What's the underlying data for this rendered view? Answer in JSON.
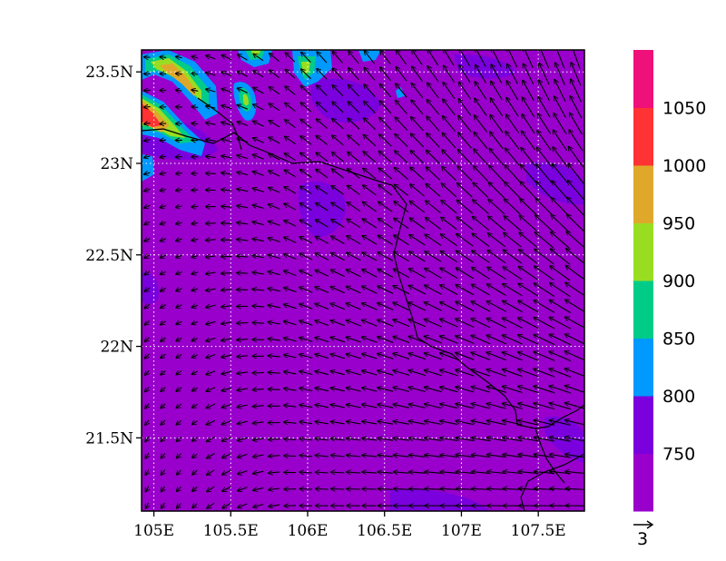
{
  "map": {
    "lat_ticks": [
      {
        "value": 23.5,
        "label": "23.5N"
      },
      {
        "value": 23.0,
        "label": "23N"
      },
      {
        "value": 22.5,
        "label": "22.5N"
      },
      {
        "value": 22.0,
        "label": "22N"
      },
      {
        "value": 21.5,
        "label": "21.5N"
      }
    ],
    "lon_ticks": [
      {
        "value": 105.0,
        "label": "105E"
      },
      {
        "value": 105.5,
        "label": "105.5E"
      },
      {
        "value": 106.0,
        "label": "106E"
      },
      {
        "value": 106.5,
        "label": "106.5E"
      },
      {
        "value": 107.0,
        "label": "107E"
      },
      {
        "value": 107.5,
        "label": "107.5E"
      }
    ],
    "lon_range": [
      104.92,
      107.8
    ],
    "lat_range": [
      21.1,
      23.62
    ],
    "grid": "dotted",
    "background_color": "#9900cc",
    "vector_reference_label": "3"
  },
  "colorbar": {
    "position": "right",
    "levels": [
      "750",
      "800",
      "850",
      "900",
      "950",
      "1000",
      "1050"
    ],
    "colors": [
      "#9900cc",
      "#7a00dd",
      "#0099ff",
      "#00cc88",
      "#99dd22",
      "#e0a82a",
      "#ff3333",
      "#f0107a"
    ]
  }
}
